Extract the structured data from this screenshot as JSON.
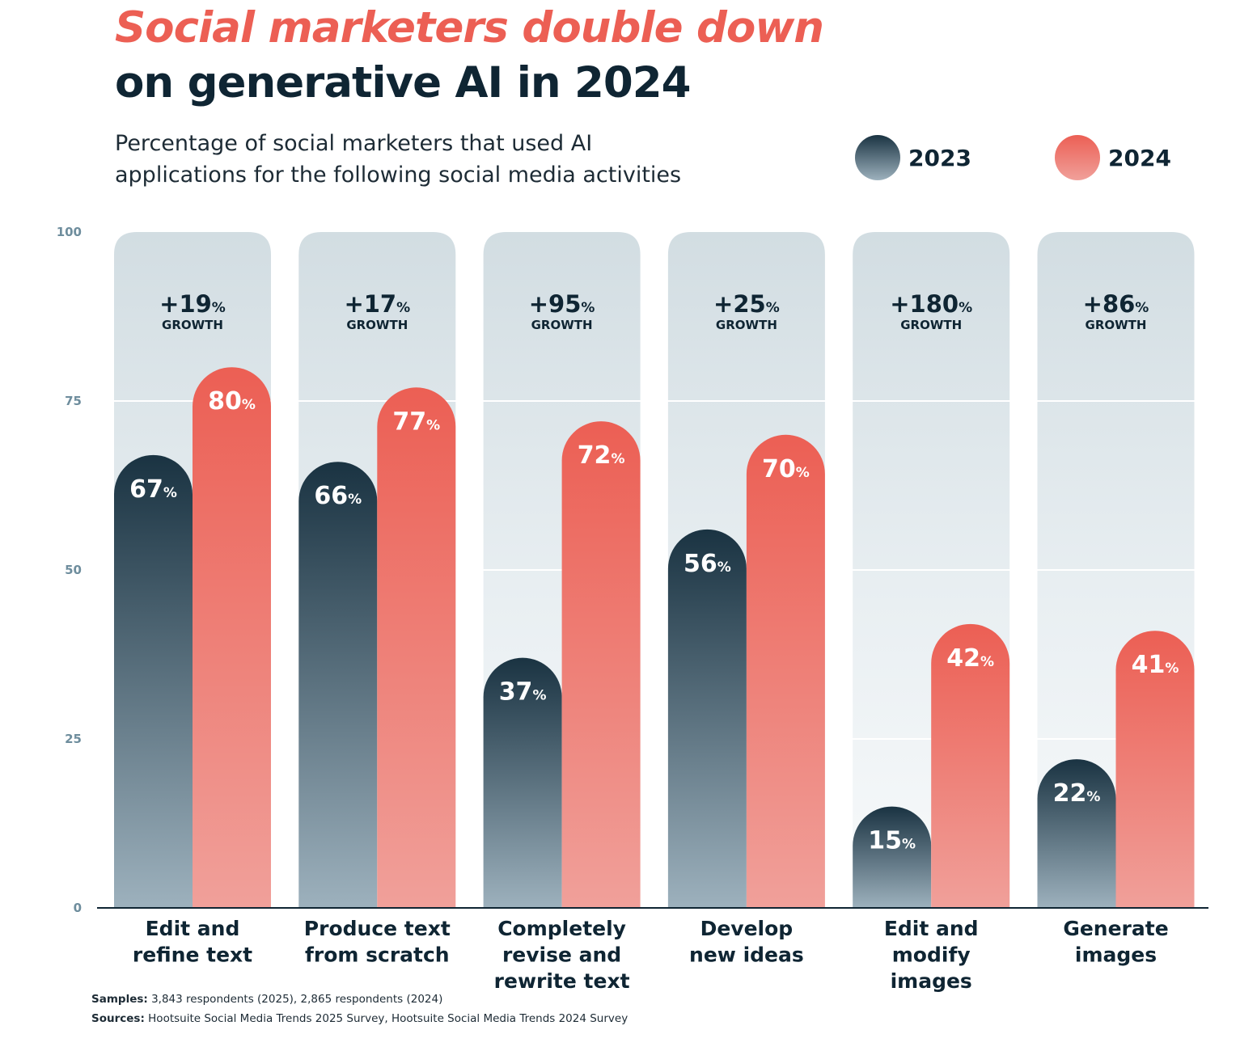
{
  "header": {
    "title_line1": "Social marketers double down",
    "title_line2": "on generative AI in 2024",
    "subtitle_line1": "Percentage of social marketers that used AI",
    "subtitle_line2": "applications for the following social media activities"
  },
  "legend": [
    {
      "label": "2023",
      "color": "#1a3342"
    },
    {
      "label": "2024",
      "color": "#ec5f54"
    }
  ],
  "chart_data": {
    "type": "bar",
    "title": "Social marketers double down on generative AI in 2024",
    "subtitle": "Percentage of social marketers that used AI applications for the following social media activities",
    "categories": [
      [
        "Edit and",
        "refine text"
      ],
      [
        "Produce text",
        "from scratch"
      ],
      [
        "Completely",
        "revise and",
        "rewrite text"
      ],
      [
        "Develop",
        "new ideas"
      ],
      [
        "Edit and",
        "modify",
        "images"
      ],
      [
        "Generate",
        "images"
      ]
    ],
    "series": [
      {
        "name": "2023",
        "values": [
          67,
          66,
          37,
          56,
          15,
          22
        ],
        "color_top": "#1a3342",
        "color_bottom": "#9db1bd"
      },
      {
        "name": "2024",
        "values": [
          80,
          77,
          72,
          70,
          42,
          41
        ],
        "color_top": "#ec5f54",
        "color_bottom": "#f0a09a"
      }
    ],
    "growth": [
      "+19",
      "+17",
      "+95",
      "+25",
      "+180",
      "+86"
    ],
    "growth_label": "GROWTH",
    "value_suffix": "%",
    "yticks": [
      0,
      25,
      50,
      75,
      100
    ],
    "ylim": [
      0,
      100
    ],
    "xlabel": "",
    "ylabel": "",
    "grid": true,
    "legend_position": "top-right"
  },
  "footnotes": {
    "samples_label": "Samples:",
    "samples_text": "3,843 respondents (2025), 2,865 respondents (2024)",
    "sources_label": "Sources:",
    "sources_text": "Hootsuite Social Media Trends 2025 Survey, Hootsuite Social Media Trends 2024 Survey"
  }
}
